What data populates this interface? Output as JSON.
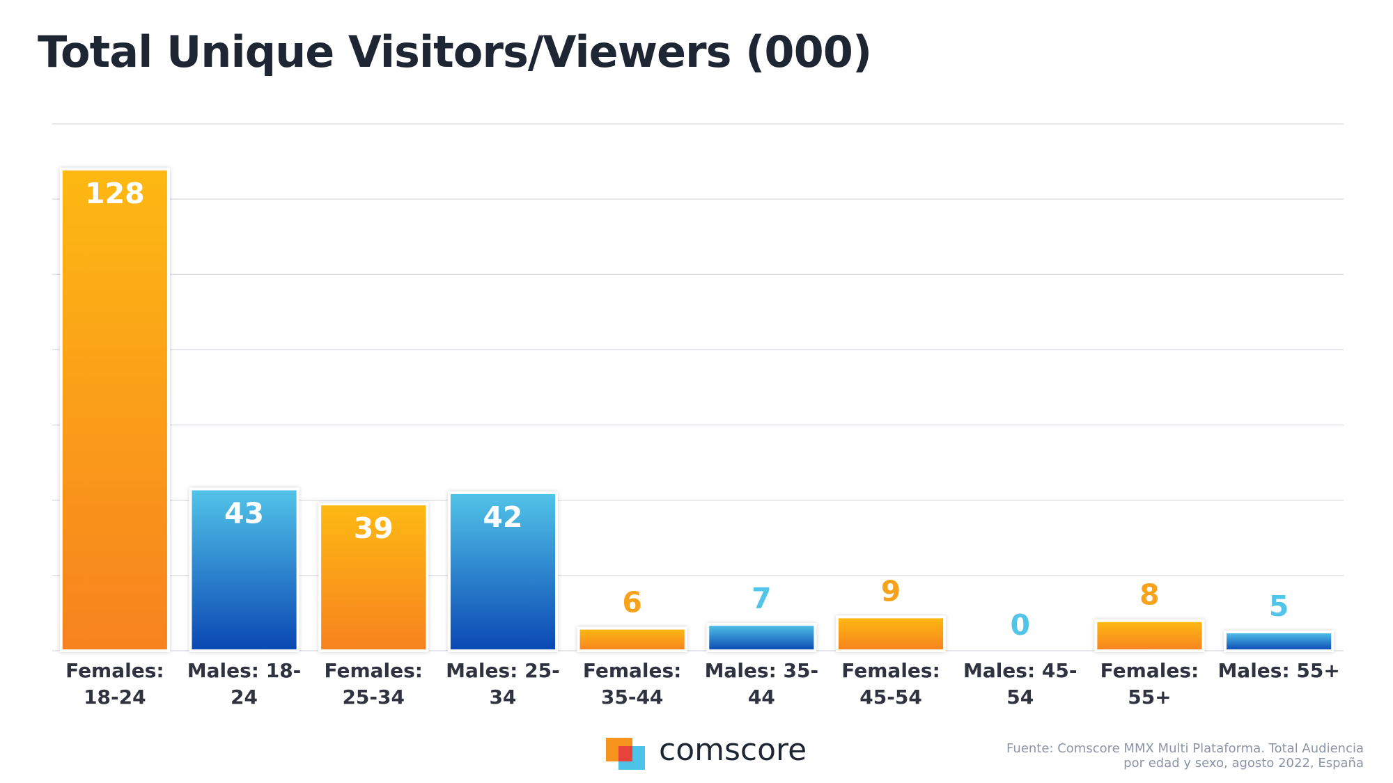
{
  "chart_data": {
    "type": "bar",
    "title": "Total Unique Visitors/Viewers (000)",
    "categories": [
      "Females: 18-24",
      "Males: 18-24",
      "Females: 25-34",
      "Males: 25-34",
      "Females: 35-44",
      "Males: 35-44",
      "Females: 45-54",
      "Males: 45-54",
      "Females: 55+",
      "Males: 55+"
    ],
    "values": [
      128,
      43,
      39,
      42,
      6,
      7,
      9,
      0,
      8,
      5
    ],
    "colors": [
      "#fdb913",
      "#52c4e8",
      "#fdb913",
      "#52c4e8",
      "#fdb913",
      "#52c4e8",
      "#fdb913",
      "#52c4e8",
      "#fdb913",
      "#52c4e8"
    ],
    "ylim": [
      0,
      140
    ],
    "yticks": [
      0,
      20,
      40,
      60,
      80,
      100,
      120,
      140
    ],
    "grid": true
  },
  "footer": {
    "logo": "comscore",
    "source": "Fuente: Comscore MMX Multi Plataforma. Total Audiencia por edad y sexo, agosto 2022, España"
  }
}
